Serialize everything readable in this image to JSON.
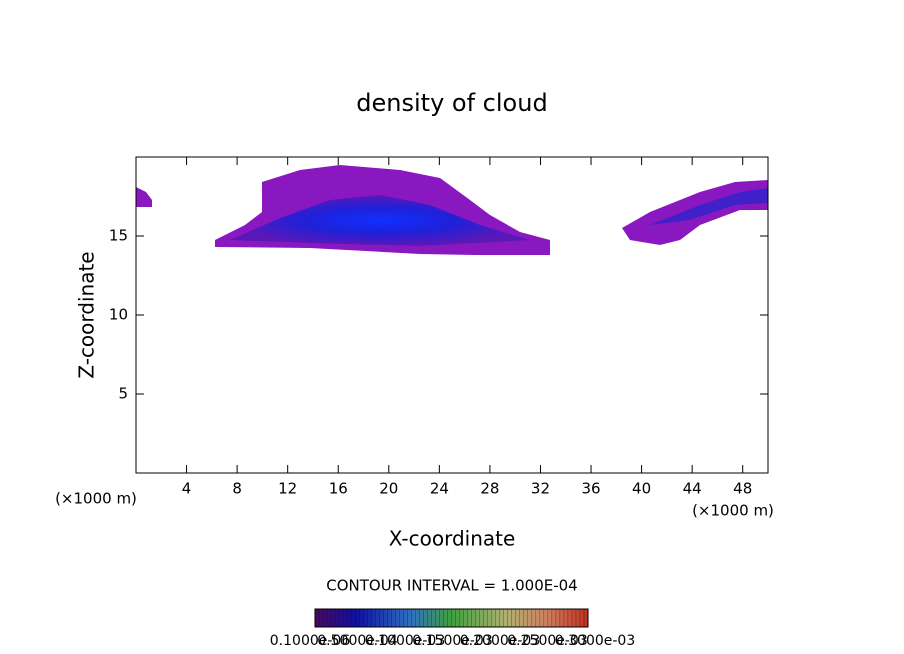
{
  "chart_data": {
    "type": "contour",
    "title": "density of cloud",
    "x_label": "X-coordinate",
    "y_label": "Z-coordinate",
    "x_unit_left": "(×1000 m)",
    "x_unit_right": "(×1000 m)",
    "xlim": [
      0,
      50
    ],
    "xticks": [
      4,
      8,
      12,
      16,
      20,
      24,
      28,
      32,
      36,
      40,
      44,
      48
    ],
    "ylim": [
      0,
      20
    ],
    "yticks": [
      5,
      10,
      15
    ],
    "contour_interval_label": "CONTOUR INTERVAL = 1.000E-04",
    "colorbar_labels": [
      "0.1000e-06",
      "0.5000e-04",
      "0.1000e-03",
      "0.1500e-03",
      "0.2000e-03",
      "0.2500e-03",
      "0.3000e-03"
    ]
  }
}
